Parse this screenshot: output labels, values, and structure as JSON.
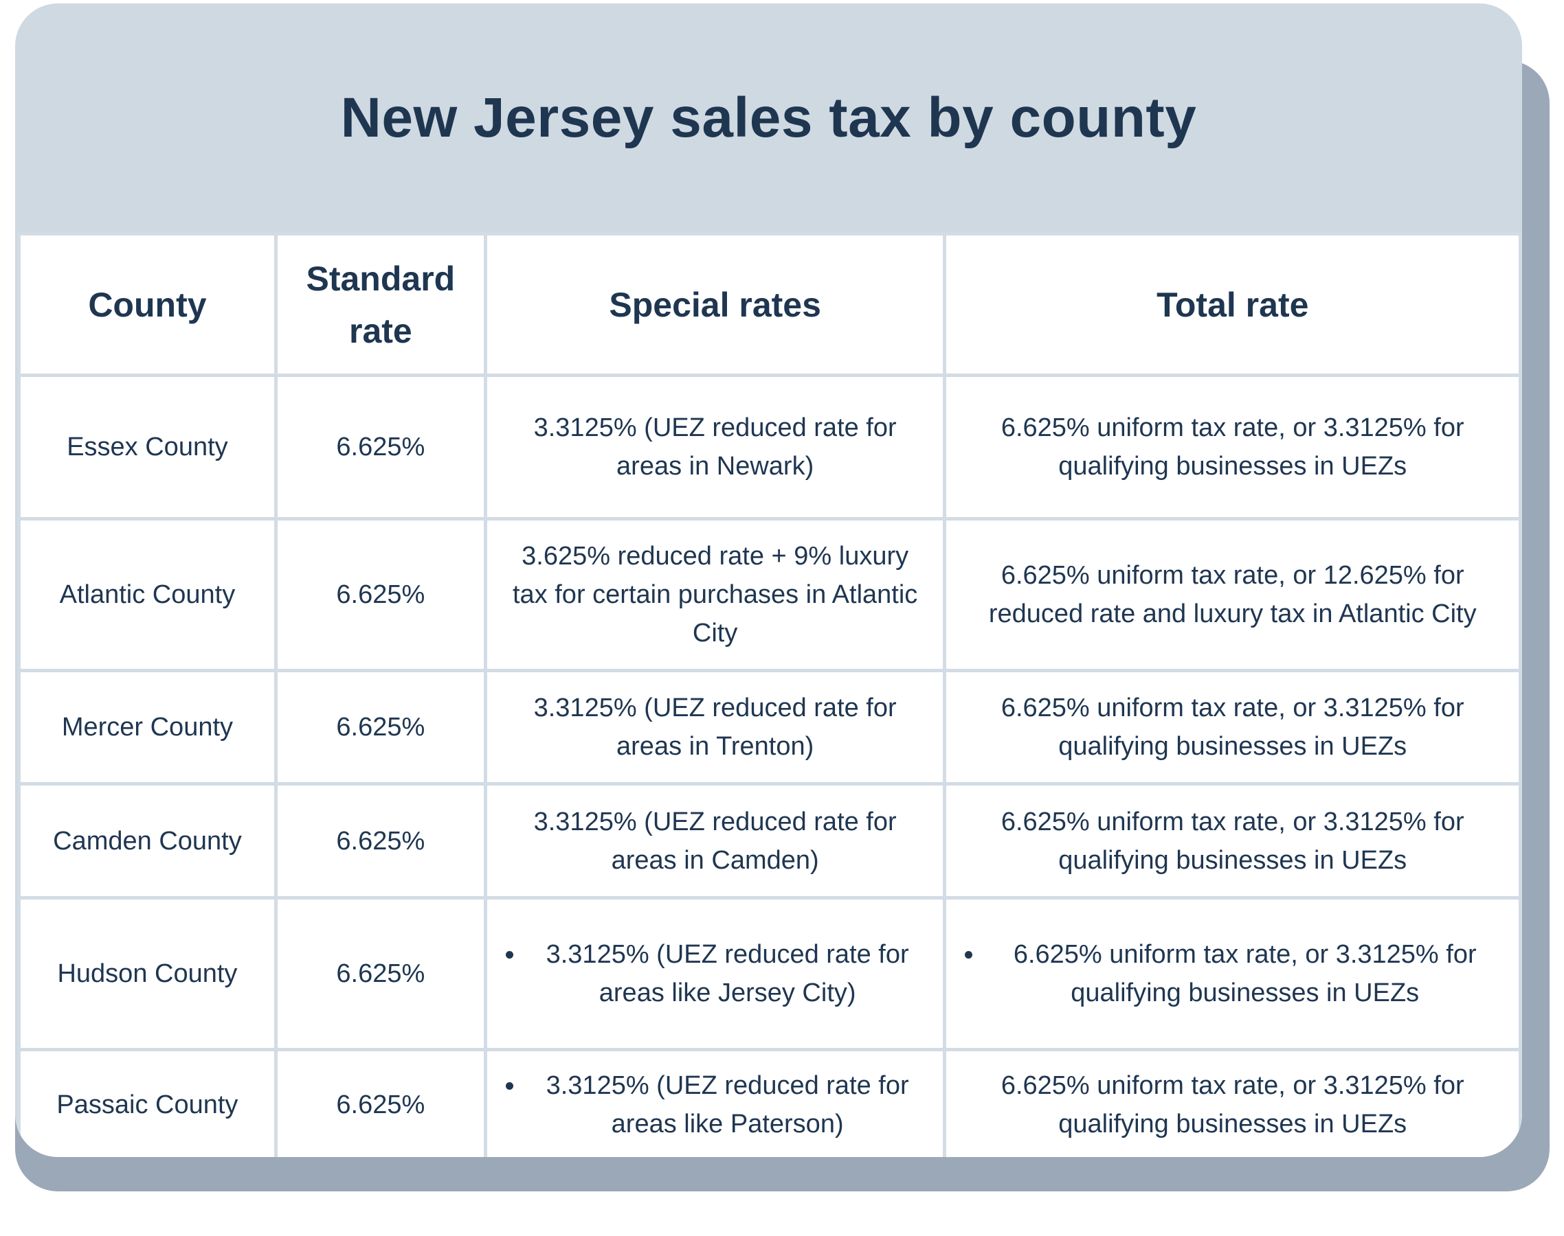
{
  "title": "New Jersey sales tax by county",
  "colors": {
    "header_bg": "#cfd9e1",
    "text": "#1f3651",
    "shadow": "#9aa8b8",
    "grid": "#d3dce4"
  },
  "table": {
    "headers": [
      "County",
      "Standard rate",
      "Special rates",
      "Total rate"
    ],
    "rows": [
      {
        "county": "Essex County",
        "standard": "6.625%",
        "special": "3.3125% (UEZ reduced rate for areas in Newark)",
        "total": "6.625% uniform tax rate, or 3.3125% for qualifying businesses in UEZs"
      },
      {
        "county": "Atlantic County",
        "standard": "6.625%",
        "special": "3.625% reduced rate + 9% luxury tax for certain purchases in Atlantic City",
        "total": "6.625% uniform tax rate, or 12.625% for reduced rate and luxury tax in Atlantic City"
      },
      {
        "county": "Mercer County",
        "standard": "6.625%",
        "special": "3.3125% (UEZ reduced rate for areas in Trenton)",
        "total": "6.625% uniform tax rate, or 3.3125% for qualifying businesses in UEZs"
      },
      {
        "county": "Camden County",
        "standard": "6.625%",
        "special": "3.3125% (UEZ reduced rate for areas in Camden)",
        "total": "6.625% uniform tax rate, or 3.3125% for qualifying businesses in UEZs"
      },
      {
        "county": "Hudson County",
        "standard": "6.625%",
        "special": "3.3125% (UEZ reduced rate for areas like Jersey City)",
        "total": "6.625% uniform tax rate, or 3.3125% for qualifying businesses in UEZs"
      },
      {
        "county": "Passaic County",
        "standard": "6.625%",
        "special": "3.3125% (UEZ reduced rate for areas like Paterson)",
        "total": "6.625% uniform tax rate, or 3.3125% for qualifying businesses in UEZs"
      }
    ]
  }
}
